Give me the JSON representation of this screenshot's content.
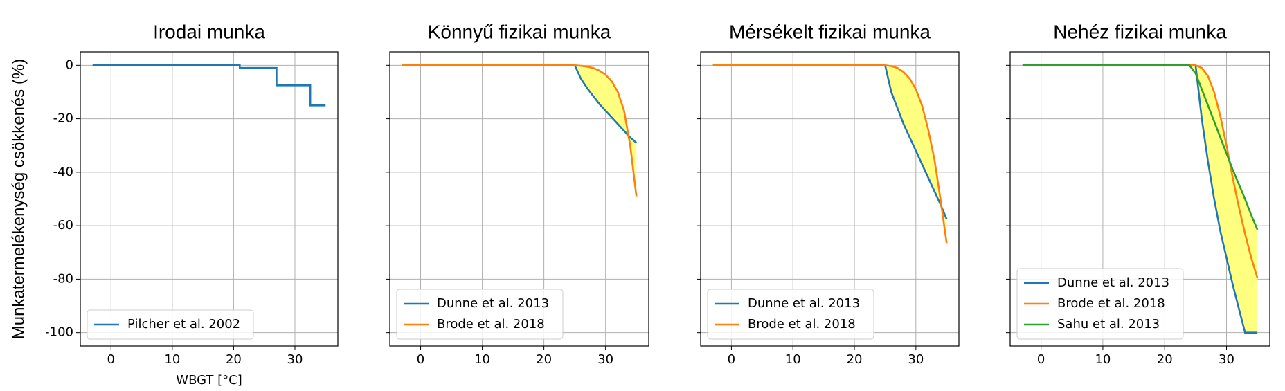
{
  "chart_data": [
    {
      "type": "line",
      "title": "Irodai munka",
      "xlabel": "WBGT [°C]",
      "ylabel": "Munkatermelékenység csökkenés (%)",
      "x": [
        -3,
        21,
        21,
        27,
        27,
        32.5,
        32.5,
        35
      ],
      "series": [
        {
          "name": "Pilcher et al. 2002",
          "color": "#1f77b4",
          "values": [
            0,
            0,
            -1,
            -1,
            -7.5,
            -7.5,
            -15,
            -15
          ]
        }
      ],
      "xlim": [
        -5,
        37
      ],
      "xticks": [
        0,
        10,
        20,
        30
      ],
      "ylim": [
        -105,
        5
      ],
      "yticks": [
        0,
        -20,
        -40,
        -60,
        -80,
        -100
      ],
      "grid": true,
      "legend": "lower left",
      "show_ytick_labels": true,
      "fill_between": false
    },
    {
      "type": "line",
      "title": "Könnyű fizikai munka",
      "x": [
        -3,
        25,
        26,
        27,
        28,
        29,
        30,
        31,
        32,
        33,
        34,
        35
      ],
      "series": [
        {
          "name": "Dunne et al. 2013",
          "color": "#1f77b4",
          "values": [
            0,
            0,
            -5,
            -8.5,
            -11.5,
            -14.5,
            -17,
            -19.5,
            -22,
            -24.5,
            -27,
            -29
          ]
        },
        {
          "name": "Brode et al. 2018",
          "color": "#ff7f0e",
          "values": [
            0,
            0,
            -0.2,
            -0.5,
            -1,
            -2,
            -3.5,
            -6,
            -10,
            -17,
            -30,
            -49
          ]
        }
      ],
      "xlim": [
        -5,
        37
      ],
      "xticks": [
        0,
        10,
        20,
        30
      ],
      "ylim": [
        -105,
        5
      ],
      "yticks": [
        0,
        -20,
        -40,
        -60,
        -80,
        -100
      ],
      "grid": true,
      "legend": "lower left",
      "show_ytick_labels": false,
      "fill_between": true,
      "fill_color": "#ffff80"
    },
    {
      "type": "line",
      "title": "Mérsékelt fizikai munka",
      "x": [
        -3,
        25,
        26,
        27,
        28,
        29,
        30,
        31,
        32,
        33,
        34,
        35
      ],
      "series": [
        {
          "name": "Dunne et al. 2013",
          "color": "#1f77b4",
          "values": [
            0,
            0,
            -10,
            -16,
            -22,
            -27,
            -32,
            -37,
            -42,
            -47,
            -52,
            -57.5
          ]
        },
        {
          "name": "Brode et al. 2018",
          "color": "#ff7f0e",
          "values": [
            0,
            0,
            -0.3,
            -1,
            -2.5,
            -5,
            -9,
            -15,
            -24,
            -35,
            -50,
            -66.5
          ]
        }
      ],
      "xlim": [
        -5,
        37
      ],
      "xticks": [
        0,
        10,
        20,
        30
      ],
      "ylim": [
        -105,
        5
      ],
      "yticks": [
        0,
        -20,
        -40,
        -60,
        -80,
        -100
      ],
      "grid": true,
      "legend": "lower left",
      "show_ytick_labels": false,
      "fill_between": true,
      "fill_color": "#ffff80"
    },
    {
      "type": "line",
      "title": "Nehéz fizikai munka",
      "x": [
        -3,
        24,
        25,
        26,
        27,
        28,
        29,
        30,
        31,
        32,
        33,
        34,
        35
      ],
      "series": [
        {
          "name": "Dunne et al. 2013",
          "color": "#1f77b4",
          "values": [
            0,
            0,
            0,
            -20,
            -36,
            -50,
            -62,
            -72,
            -82,
            -91,
            -100,
            -100,
            -100
          ]
        },
        {
          "name": "Brode et al. 2018",
          "color": "#ff7f0e",
          "values": [
            0,
            0,
            0,
            -1,
            -4,
            -10,
            -19,
            -30,
            -42,
            -53,
            -63,
            -72,
            -79.5
          ]
        },
        {
          "name": "Sahu et al. 2013",
          "color": "#2ca02c",
          "values": [
            0,
            0,
            -3,
            -9,
            -15,
            -21,
            -27,
            -33,
            -39,
            -44.5,
            -50,
            -56,
            -61.5
          ]
        }
      ],
      "xlim": [
        -5,
        37
      ],
      "xticks": [
        0,
        10,
        20,
        30
      ],
      "ylim": [
        -105,
        5
      ],
      "yticks": [
        0,
        -20,
        -40,
        -60,
        -80,
        -100
      ],
      "grid": true,
      "legend": "lower left",
      "show_ytick_labels": false,
      "fill_between": true,
      "fill_color": "#ffff80"
    }
  ]
}
